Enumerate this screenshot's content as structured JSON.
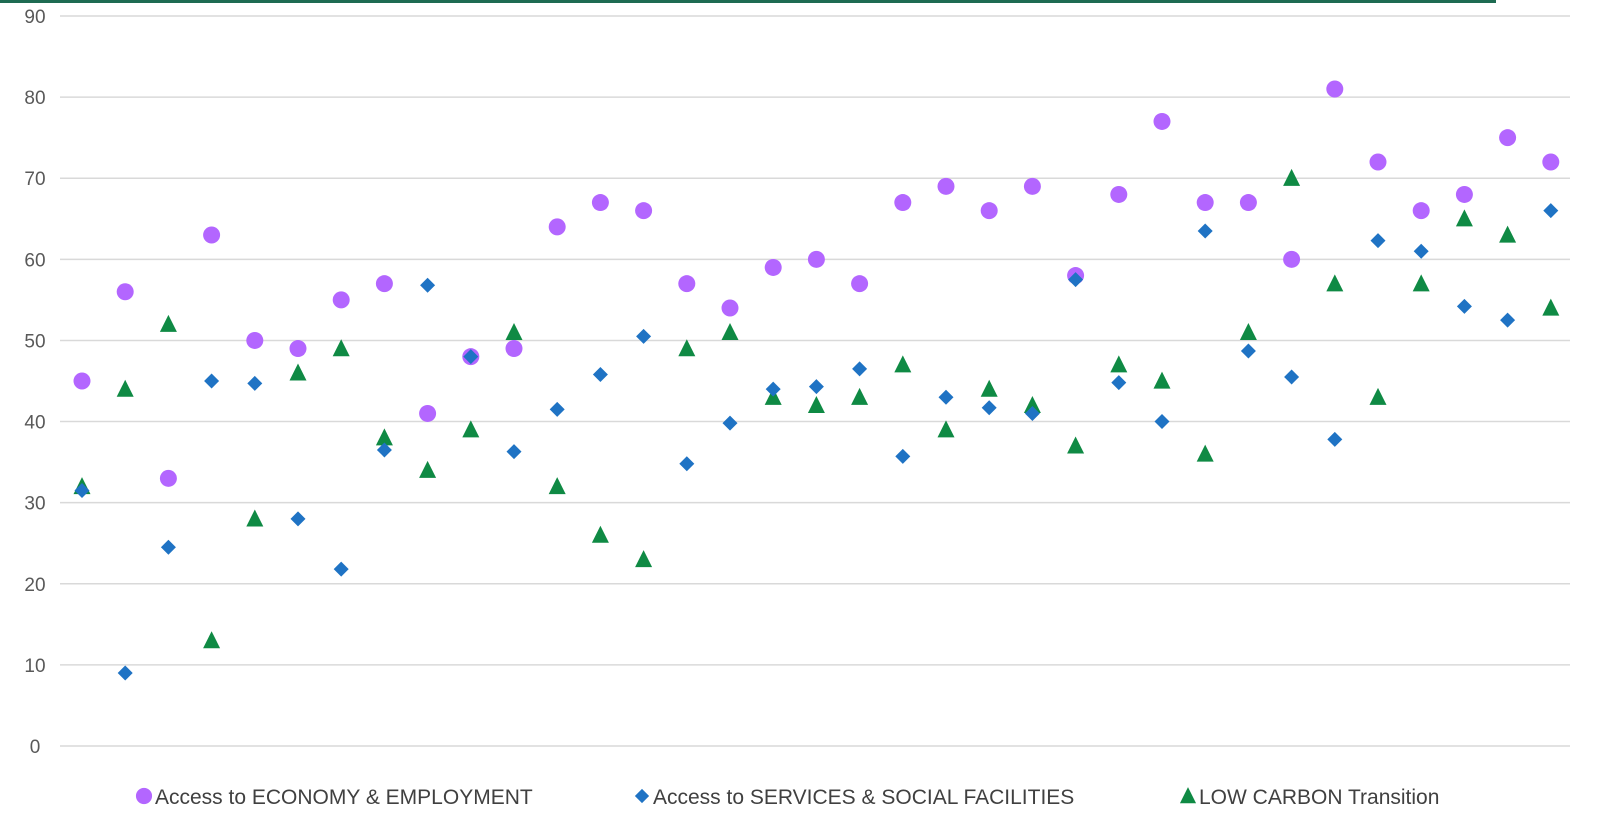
{
  "chart_data": {
    "type": "scatter",
    "title": "",
    "xlabel": "",
    "ylabel": "",
    "ylim": [
      0,
      90
    ],
    "yticks": [
      0,
      10,
      20,
      30,
      40,
      50,
      60,
      70,
      80,
      90
    ],
    "grid": "horizontal",
    "legend_position": "bottom",
    "x": [
      1,
      2,
      3,
      4,
      5,
      6,
      7,
      8,
      9,
      10,
      11,
      12,
      13,
      14,
      15,
      16,
      17,
      18,
      19,
      20,
      21,
      22,
      23,
      24,
      25,
      26,
      27,
      28,
      29,
      30,
      31,
      32,
      33,
      34,
      35,
      36
    ],
    "series": [
      {
        "name": "Access to ECONOMY & EMPLOYMENT",
        "marker": "circle",
        "color": "#b366ff",
        "values": [
          45,
          56,
          33,
          63,
          50,
          49,
          55,
          57,
          41,
          48,
          49,
          64,
          67,
          66,
          57,
          54,
          59,
          60,
          57,
          67,
          69,
          66,
          69,
          58,
          68,
          77,
          67,
          67,
          60,
          81,
          72,
          66,
          68,
          75,
          72,
          null
        ]
      },
      {
        "name": "Access to SERVICES & SOCIAL FACILITIES",
        "marker": "diamond",
        "color": "#1f73c4",
        "values": [
          31.5,
          9,
          24.5,
          45,
          44.7,
          28,
          21.8,
          36.5,
          56.8,
          48,
          36.3,
          41.5,
          45.8,
          50.5,
          34.8,
          39.8,
          44,
          44.3,
          46.5,
          35.7,
          43,
          41.7,
          41,
          57.5,
          44.8,
          40,
          63.5,
          48.7,
          45.5,
          37.8,
          62.3,
          61,
          54.2,
          52.5,
          66,
          null
        ]
      },
      {
        "name": "LOW CARBON Transition",
        "marker": "triangle",
        "color": "#0f8a44",
        "values": [
          32,
          44,
          52,
          13,
          28,
          46,
          49,
          38,
          34,
          39,
          51,
          32,
          26,
          23,
          49,
          51,
          43,
          42,
          43,
          47,
          39,
          44,
          42,
          37,
          47,
          45,
          36,
          51,
          70,
          57,
          43,
          57,
          65,
          63,
          54,
          null
        ]
      }
    ]
  },
  "colors": {
    "top_border": "#1e6b52",
    "gridline": "#d9d9d9",
    "axis_text": "#595959"
  }
}
